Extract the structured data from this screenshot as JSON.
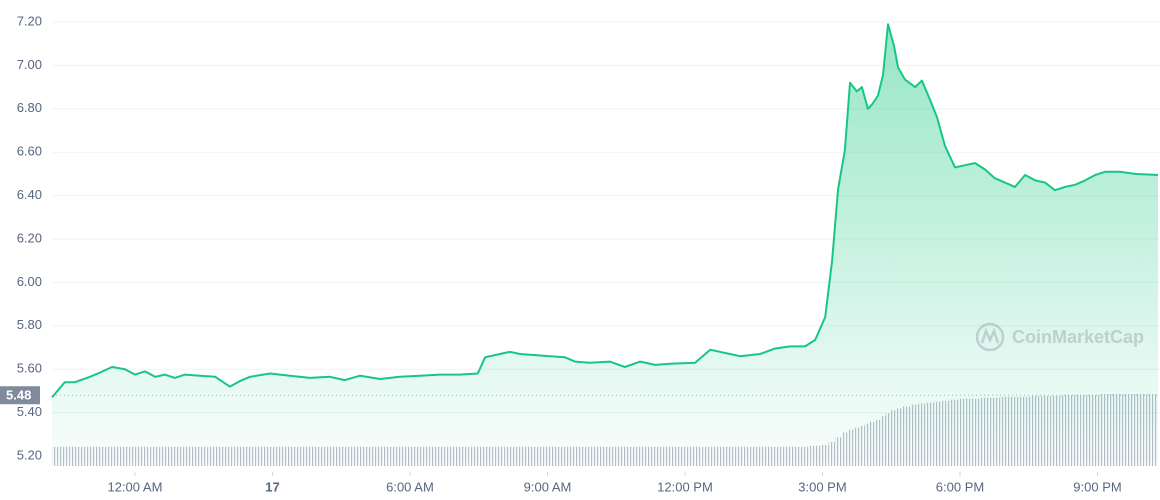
{
  "chart_data": {
    "type": "line",
    "color": "#16c784",
    "reference": 5.48,
    "watermark": "CoinMarketCap",
    "xlim": [
      -1.81,
      22.32
    ],
    "xticks": [
      {
        "value": 0,
        "label": "12:00 AM"
      },
      {
        "value": 3,
        "label": "17"
      },
      {
        "value": 6,
        "label": "6:00 AM"
      },
      {
        "value": 9,
        "label": "9:00 AM"
      },
      {
        "value": 12,
        "label": "12:00 PM"
      },
      {
        "value": 15,
        "label": "3:00 PM"
      },
      {
        "value": 18,
        "label": "6:00 PM"
      },
      {
        "value": 21,
        "label": "9:00 PM"
      }
    ],
    "ylim": [
      5.2,
      7.2
    ],
    "yticks": [
      {
        "value": 5.2,
        "label": "5.20"
      },
      {
        "value": 5.4,
        "label": "5.40"
      },
      {
        "value": 5.6,
        "label": "5.60"
      },
      {
        "value": 5.8,
        "label": "5.80"
      },
      {
        "value": 6.0,
        "label": "6.00"
      },
      {
        "value": 6.2,
        "label": "6.20"
      },
      {
        "value": 6.4,
        "label": "6.40"
      },
      {
        "value": 6.6,
        "label": "6.60"
      },
      {
        "value": 6.8,
        "label": "6.80"
      },
      {
        "value": 7.0,
        "label": "7.00"
      },
      {
        "value": 7.2,
        "label": "7.20"
      }
    ],
    "grid": true,
    "x": [
      -1.81,
      -1.53,
      -1.31,
      -0.98,
      -0.76,
      -0.5,
      -0.22,
      0,
      0.22,
      0.44,
      0.65,
      0.87,
      1.09,
      1.42,
      1.75,
      2.07,
      2.29,
      2.51,
      2.95,
      3.38,
      3.82,
      4.25,
      4.58,
      4.91,
      5.35,
      5.78,
      6.22,
      6.65,
      7.09,
      7.48,
      7.64,
      7.96,
      8.18,
      8.4,
      8.73,
      9.06,
      9.38,
      9.6,
      9.93,
      10.36,
      10.69,
      11.02,
      11.35,
      11.67,
      12.22,
      12.55,
      12.76,
      12.98,
      13.2,
      13.64,
      13.96,
      14.29,
      14.62,
      14.84,
      15.06,
      15.21,
      15.34,
      15.49,
      15.6,
      15.75,
      15.86,
      15.99,
      16.08,
      16.21,
      16.32,
      16.43,
      16.56,
      16.65,
      16.8,
      17.02,
      17.17,
      17.35,
      17.5,
      17.67,
      17.89,
      18.11,
      18.33,
      18.55,
      18.76,
      18.98,
      19.2,
      19.42,
      19.64,
      19.86,
      20.07,
      20.29,
      20.51,
      20.73,
      20.95,
      21.17,
      21.49,
      21.82,
      22.32
    ],
    "values": [
      5.47,
      5.54,
      5.54,
      5.565,
      5.585,
      5.61,
      5.6,
      5.575,
      5.59,
      5.565,
      5.575,
      5.56,
      5.575,
      5.57,
      5.565,
      5.52,
      5.545,
      5.565,
      5.58,
      5.57,
      5.56,
      5.565,
      5.55,
      5.57,
      5.555,
      5.565,
      5.57,
      5.575,
      5.575,
      5.58,
      5.655,
      5.67,
      5.68,
      5.67,
      5.665,
      5.66,
      5.655,
      5.635,
      5.63,
      5.635,
      5.61,
      5.635,
      5.62,
      5.625,
      5.63,
      5.69,
      5.68,
      5.67,
      5.66,
      5.67,
      5.695,
      5.705,
      5.705,
      5.735,
      5.84,
      6.1,
      6.43,
      6.61,
      6.92,
      6.88,
      6.9,
      6.8,
      6.82,
      6.86,
      6.955,
      7.19,
      7.09,
      6.99,
      6.935,
      6.9,
      6.93,
      6.84,
      6.76,
      6.63,
      6.53,
      6.54,
      6.55,
      6.52,
      6.48,
      6.46,
      6.44,
      6.495,
      6.47,
      6.46,
      6.425,
      6.44,
      6.45,
      6.47,
      6.495,
      6.51,
      6.51,
      6.5,
      6.495
    ],
    "volume": [
      20,
      20,
      20,
      20,
      20,
      20,
      20,
      20,
      20,
      20,
      20,
      20,
      20,
      20,
      20,
      20,
      20,
      20,
      20,
      20,
      20,
      20,
      20,
      20,
      20,
      20,
      20,
      20,
      20,
      20,
      20,
      20,
      20,
      20,
      20,
      20,
      20,
      20,
      20,
      20,
      20,
      20,
      20,
      20,
      20,
      20,
      20,
      20,
      20,
      20,
      20,
      20,
      20,
      21,
      22,
      25,
      30,
      35,
      38,
      40,
      42,
      44,
      46,
      48,
      52,
      55,
      58,
      60,
      62,
      64,
      65,
      66,
      67,
      68,
      69,
      70,
      70,
      71,
      71,
      72,
      72,
      72,
      73,
      73,
      73,
      74,
      74,
      74,
      74,
      75,
      75,
      75,
      75
    ]
  }
}
